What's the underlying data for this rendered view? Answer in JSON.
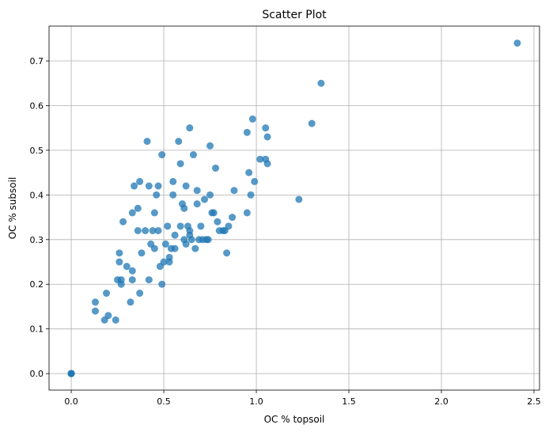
{
  "chart_data": {
    "type": "scatter",
    "title": "Scatter Plot",
    "xlabel": "OC % topsoil",
    "ylabel": "OC % subsoil",
    "xlim": [
      -0.12,
      2.53
    ],
    "ylim": [
      -0.037,
      0.778
    ],
    "xticks": [
      0.0,
      0.5,
      1.0,
      1.5,
      2.0,
      2.5
    ],
    "xtick_labels": [
      "0.0",
      "0.5",
      "1.0",
      "1.5",
      "2.0",
      "2.5"
    ],
    "yticks": [
      0.0,
      0.1,
      0.2,
      0.3,
      0.4,
      0.5,
      0.6,
      0.7
    ],
    "ytick_labels": [
      "0.0",
      "0.1",
      "0.2",
      "0.3",
      "0.4",
      "0.5",
      "0.6",
      "0.7"
    ],
    "grid": true,
    "marker_color": "#1f77b4",
    "marker_alpha": 0.75,
    "points": [
      [
        0.0,
        0.0
      ],
      [
        0.0,
        0.0
      ],
      [
        0.0,
        0.0
      ],
      [
        0.13,
        0.16
      ],
      [
        0.13,
        0.14
      ],
      [
        0.18,
        0.12
      ],
      [
        0.19,
        0.18
      ],
      [
        0.2,
        0.13
      ],
      [
        0.24,
        0.12
      ],
      [
        0.25,
        0.21
      ],
      [
        0.26,
        0.25
      ],
      [
        0.26,
        0.27
      ],
      [
        0.27,
        0.21
      ],
      [
        0.27,
        0.2
      ],
      [
        0.28,
        0.34
      ],
      [
        0.3,
        0.24
      ],
      [
        0.32,
        0.16
      ],
      [
        0.33,
        0.36
      ],
      [
        0.33,
        0.21
      ],
      [
        0.33,
        0.23
      ],
      [
        0.34,
        0.42
      ],
      [
        0.36,
        0.37
      ],
      [
        0.36,
        0.32
      ],
      [
        0.37,
        0.43
      ],
      [
        0.37,
        0.18
      ],
      [
        0.38,
        0.27
      ],
      [
        0.4,
        0.32
      ],
      [
        0.41,
        0.52
      ],
      [
        0.42,
        0.21
      ],
      [
        0.42,
        0.42
      ],
      [
        0.43,
        0.29
      ],
      [
        0.44,
        0.32
      ],
      [
        0.45,
        0.36
      ],
      [
        0.45,
        0.28
      ],
      [
        0.46,
        0.4
      ],
      [
        0.47,
        0.32
      ],
      [
        0.47,
        0.42
      ],
      [
        0.48,
        0.24
      ],
      [
        0.49,
        0.2
      ],
      [
        0.49,
        0.49
      ],
      [
        0.5,
        0.25
      ],
      [
        0.51,
        0.29
      ],
      [
        0.52,
        0.33
      ],
      [
        0.53,
        0.26
      ],
      [
        0.53,
        0.25
      ],
      [
        0.54,
        0.28
      ],
      [
        0.55,
        0.4
      ],
      [
        0.55,
        0.43
      ],
      [
        0.56,
        0.31
      ],
      [
        0.56,
        0.28
      ],
      [
        0.58,
        0.52
      ],
      [
        0.59,
        0.33
      ],
      [
        0.59,
        0.47
      ],
      [
        0.6,
        0.38
      ],
      [
        0.61,
        0.3
      ],
      [
        0.61,
        0.37
      ],
      [
        0.62,
        0.42
      ],
      [
        0.62,
        0.29
      ],
      [
        0.63,
        0.33
      ],
      [
        0.64,
        0.32
      ],
      [
        0.64,
        0.31
      ],
      [
        0.64,
        0.55
      ],
      [
        0.65,
        0.3
      ],
      [
        0.66,
        0.49
      ],
      [
        0.67,
        0.28
      ],
      [
        0.68,
        0.38
      ],
      [
        0.68,
        0.41
      ],
      [
        0.69,
        0.3
      ],
      [
        0.7,
        0.33
      ],
      [
        0.71,
        0.3
      ],
      [
        0.72,
        0.39
      ],
      [
        0.73,
        0.3
      ],
      [
        0.74,
        0.3
      ],
      [
        0.75,
        0.51
      ],
      [
        0.75,
        0.4
      ],
      [
        0.76,
        0.36
      ],
      [
        0.77,
        0.36
      ],
      [
        0.78,
        0.46
      ],
      [
        0.79,
        0.34
      ],
      [
        0.8,
        0.32
      ],
      [
        0.82,
        0.32
      ],
      [
        0.83,
        0.32
      ],
      [
        0.84,
        0.27
      ],
      [
        0.85,
        0.33
      ],
      [
        0.87,
        0.35
      ],
      [
        0.88,
        0.41
      ],
      [
        0.95,
        0.54
      ],
      [
        0.95,
        0.36
      ],
      [
        0.96,
        0.45
      ],
      [
        0.97,
        0.4
      ],
      [
        0.98,
        0.57
      ],
      [
        0.99,
        0.43
      ],
      [
        1.02,
        0.48
      ],
      [
        1.05,
        0.55
      ],
      [
        1.05,
        0.48
      ],
      [
        1.06,
        0.53
      ],
      [
        1.06,
        0.47
      ],
      [
        1.23,
        0.39
      ],
      [
        1.3,
        0.56
      ],
      [
        1.35,
        0.65
      ],
      [
        2.41,
        0.74
      ]
    ]
  }
}
